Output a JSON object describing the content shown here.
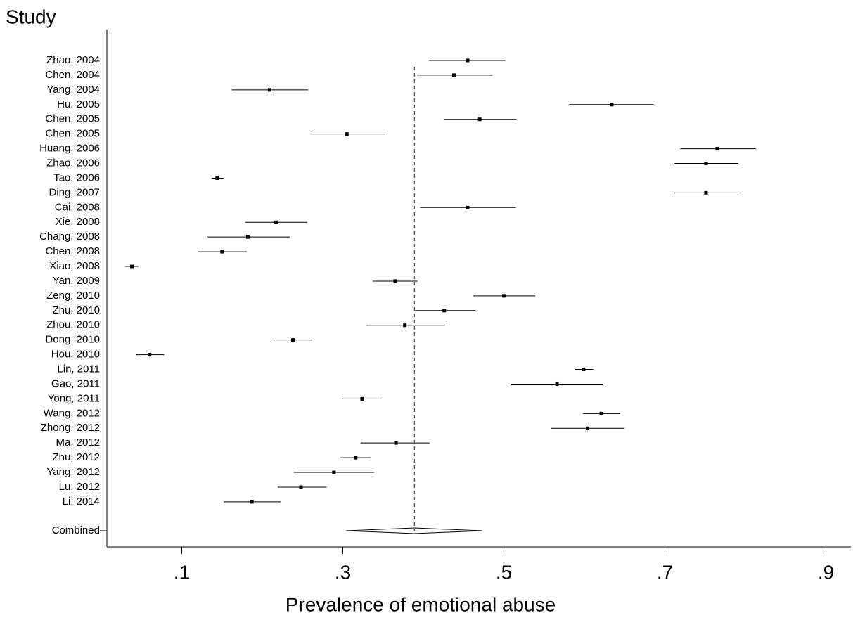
{
  "chart_data": {
    "type": "forest",
    "y_title": "Study",
    "x_title": "Prevalence of emotional abuse",
    "categories": [
      "Zhao, 2004",
      "Chen, 2004",
      "Yang, 2004",
      "Hu, 2005",
      "Chen, 2005",
      "Chen, 2005",
      "Huang, 2006",
      "Zhao, 2006",
      "Tao, 2006",
      "Ding, 2007",
      "Cai, 2008",
      "Xie, 2008",
      "Chang, 2008",
      "Chen, 2008",
      "Xiao, 2008",
      "Yan, 2009",
      "Zeng, 2010",
      "Zhu, 2010",
      "Zhou, 2010",
      "Dong, 2010",
      "Hou, 2010",
      "Lin, 2011",
      "Gao, 2011",
      "Yong, 2011",
      "Wang, 2012",
      "Zhong, 2012",
      "Ma, 2012",
      "Zhu, 2012",
      "Yang, 2012",
      "Lu, 2012",
      "Li, 2014"
    ],
    "values": [
      0.455,
      0.438,
      0.209,
      0.634,
      0.47,
      0.305,
      0.765,
      0.751,
      0.144,
      0.751,
      0.455,
      0.217,
      0.182,
      0.15,
      0.038,
      0.365,
      0.5,
      0.426,
      0.377,
      0.238,
      0.06,
      0.599,
      0.566,
      0.324,
      0.621,
      0.604,
      0.366,
      0.316,
      0.289,
      0.248,
      0.187
    ],
    "lower": [
      0.407,
      0.392,
      0.162,
      0.581,
      0.426,
      0.26,
      0.719,
      0.712,
      0.137,
      0.712,
      0.396,
      0.179,
      0.132,
      0.12,
      0.03,
      0.337,
      0.462,
      0.389,
      0.329,
      0.214,
      0.043,
      0.588,
      0.509,
      0.299,
      0.598,
      0.559,
      0.322,
      0.297,
      0.239,
      0.219,
      0.152
    ],
    "upper": [
      0.502,
      0.486,
      0.257,
      0.686,
      0.516,
      0.352,
      0.813,
      0.791,
      0.152,
      0.791,
      0.515,
      0.256,
      0.234,
      0.181,
      0.046,
      0.393,
      0.539,
      0.465,
      0.427,
      0.262,
      0.078,
      0.611,
      0.623,
      0.349,
      0.644,
      0.65,
      0.408,
      0.335,
      0.339,
      0.28,
      0.223
    ],
    "combined": {
      "label": "Combined",
      "value": 0.389,
      "lower": 0.304,
      "upper": 0.473
    },
    "color": "#000000",
    "xlim": [
      0.007,
      0.931
    ],
    "xticks": [
      {
        "value": 0.1,
        "label": ".1"
      },
      {
        "value": 0.3,
        "label": ".3"
      },
      {
        "value": 0.5,
        "label": ".5"
      },
      {
        "value": 0.7,
        "label": ".7"
      },
      {
        "value": 0.9,
        "label": ".9"
      }
    ]
  }
}
